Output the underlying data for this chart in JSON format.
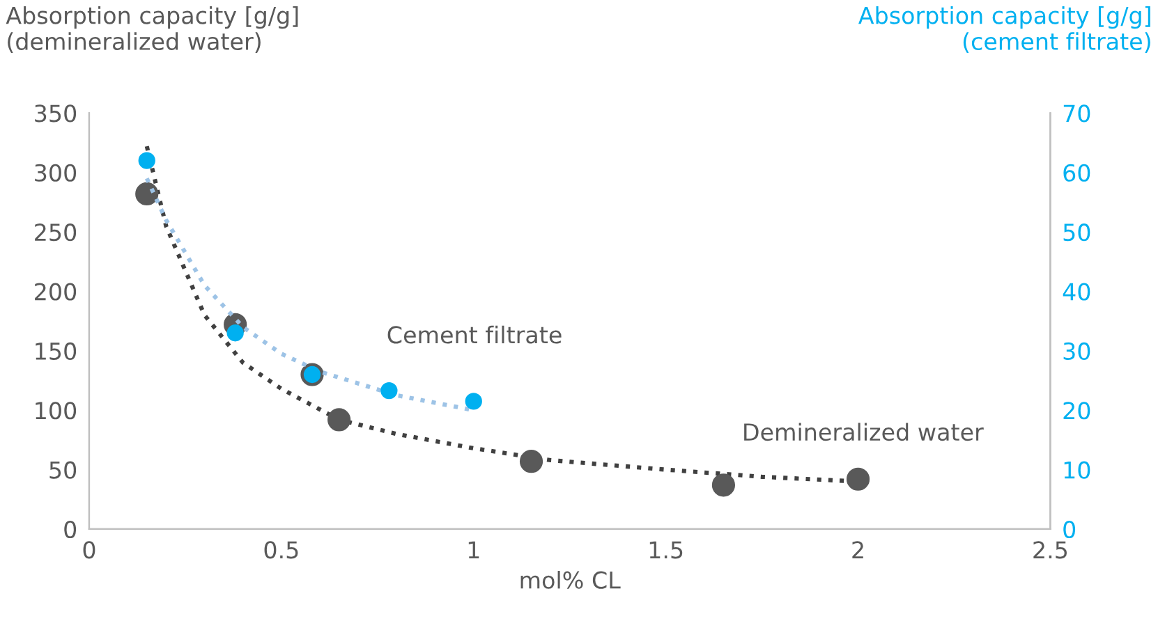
{
  "chart_data": {
    "type": "scatter",
    "xlabel": "mol% CL",
    "ylabel": "Absorption capacity [g/g]\n(demineralized water)",
    "y2label": "Absorption capacity [g/g]\n(cement filtrate)",
    "xlim": [
      0,
      2.5
    ],
    "xticks": [
      0,
      0.5,
      1,
      1.5,
      2,
      2.5
    ],
    "ylim": [
      0,
      350
    ],
    "yticks": [
      0,
      50,
      100,
      150,
      200,
      250,
      300,
      350
    ],
    "y2lim": [
      0,
      70
    ],
    "y2ticks": [
      0,
      10,
      20,
      30,
      40,
      50,
      60,
      70
    ],
    "grid": false,
    "legend": false,
    "series": [
      {
        "type": "line",
        "line_style": "dotted",
        "marker": "none",
        "color": "#404040",
        "x": [
          0.15,
          0.2,
          0.3,
          0.4,
          0.5,
          0.65,
          0.8,
          1.0,
          1.2,
          1.5,
          1.75,
          2.0
        ],
        "values": [
          322,
          255,
          180,
          140,
          118,
          92,
          80,
          68,
          58,
          50,
          44,
          40
        ]
      },
      {
        "type": "line",
        "line_style": "dotted",
        "marker": "none",
        "color": "#9dc3e6",
        "axis": "y2",
        "x": [
          0.15,
          0.2,
          0.3,
          0.4,
          0.5,
          0.6,
          0.8,
          1.0
        ],
        "values": [
          59,
          52,
          41,
          34,
          29.5,
          26.5,
          22.5,
          20
        ]
      },
      {
        "marker": "circle",
        "name": "Demineralized water",
        "color": "#595959",
        "x": [
          0.15,
          0.38,
          0.58,
          0.65,
          1.15,
          1.65,
          2.0
        ],
        "values": [
          282,
          172,
          130,
          92,
          57,
          37,
          42
        ]
      },
      {
        "marker": "circle",
        "name": "Cement filtrate",
        "color": "#00b0f0",
        "axis": "y2",
        "x": [
          0.15,
          0.38,
          0.58,
          0.78,
          1.0
        ],
        "values": [
          62,
          33,
          26,
          23.3,
          21.5
        ]
      }
    ]
  }
}
